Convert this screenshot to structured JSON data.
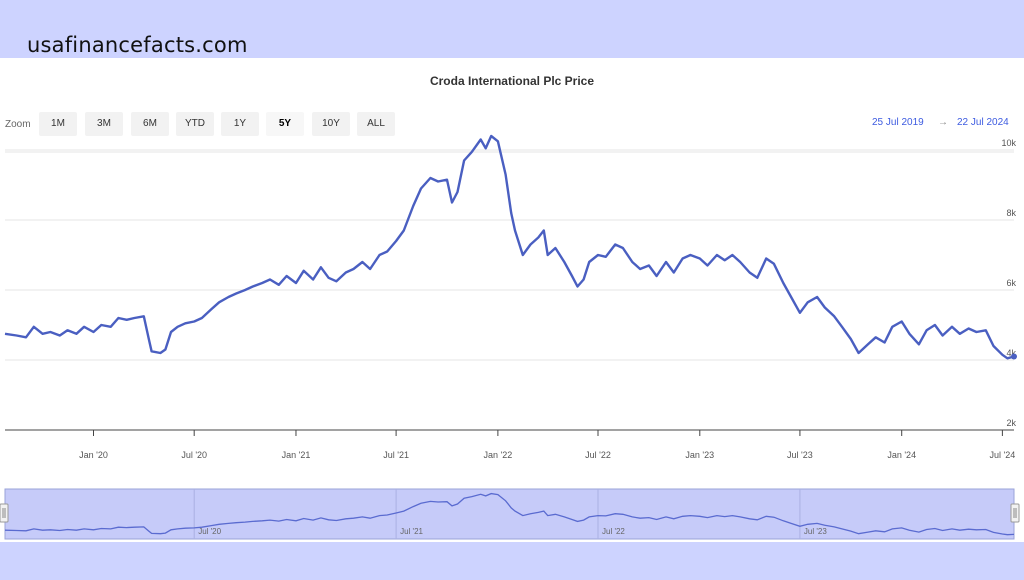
{
  "header": {
    "site": "usafinancefacts.com"
  },
  "colors": {
    "band": "#cdd3ff",
    "series": "#4a5fc1",
    "navigator_fill": "#c6cbf9",
    "date_link": "#3d5be0"
  },
  "zoom": {
    "label": "Zoom",
    "buttons": [
      "1M",
      "3M",
      "6M",
      "YTD",
      "1Y",
      "5Y",
      "10Y",
      "ALL"
    ],
    "selected": "5Y"
  },
  "range": {
    "from": "25 Jul 2019",
    "arrow": "→",
    "to": "22 Jul 2024"
  },
  "chart_data": {
    "type": "line",
    "title": "Croda International Plc Price",
    "xlabel": "",
    "ylabel": "",
    "grid": true,
    "xlim": [
      "2019-07-25",
      "2024-07-22"
    ],
    "ylim": [
      2000,
      11000
    ],
    "y_ticks": [
      2000,
      4000,
      6000,
      8000,
      10000
    ],
    "y_tick_labels": [
      "2k",
      "4k",
      "6k",
      "8k",
      "10k"
    ],
    "x_ticks": [
      "2020-01-01",
      "2020-07-01",
      "2021-01-01",
      "2021-07-01",
      "2022-01-01",
      "2022-07-01",
      "2023-01-01",
      "2023-07-01",
      "2024-01-01",
      "2024-07-01"
    ],
    "x_tick_labels": [
      "Jan '20",
      "Jul '20",
      "Jan '21",
      "Jul '21",
      "Jan '22",
      "Jul '22",
      "Jan '23",
      "Jul '23",
      "Jan '24",
      "Jul '24"
    ],
    "navigator_tick_labels": [
      "Jul '20",
      "Jul '21",
      "Jul '22",
      "Jul '23"
    ],
    "series": [
      {
        "points": [
          [
            "2019-07-25",
            4750
          ],
          [
            "2019-08-15",
            4700
          ],
          [
            "2019-09-01",
            4650
          ],
          [
            "2019-09-15",
            4950
          ],
          [
            "2019-10-01",
            4750
          ],
          [
            "2019-10-15",
            4800
          ],
          [
            "2019-11-01",
            4700
          ],
          [
            "2019-11-15",
            4850
          ],
          [
            "2019-12-01",
            4750
          ],
          [
            "2019-12-15",
            4950
          ],
          [
            "2020-01-01",
            4800
          ],
          [
            "2020-01-15",
            5000
          ],
          [
            "2020-02-01",
            4950
          ],
          [
            "2020-02-15",
            5200
          ],
          [
            "2020-03-01",
            5150
          ],
          [
            "2020-03-15",
            5200
          ],
          [
            "2020-04-01",
            5250
          ],
          [
            "2020-04-10",
            4600
          ],
          [
            "2020-04-15",
            4250
          ],
          [
            "2020-05-01",
            4200
          ],
          [
            "2020-05-10",
            4300
          ],
          [
            "2020-05-20",
            4800
          ],
          [
            "2020-06-01",
            4950
          ],
          [
            "2020-06-15",
            5050
          ],
          [
            "2020-07-01",
            5100
          ],
          [
            "2020-07-15",
            5200
          ],
          [
            "2020-08-01",
            5450
          ],
          [
            "2020-08-15",
            5650
          ],
          [
            "2020-09-01",
            5800
          ],
          [
            "2020-09-15",
            5900
          ],
          [
            "2020-10-01",
            6000
          ],
          [
            "2020-10-15",
            6100
          ],
          [
            "2020-11-01",
            6200
          ],
          [
            "2020-11-15",
            6300
          ],
          [
            "2020-12-01",
            6150
          ],
          [
            "2020-12-15",
            6400
          ],
          [
            "2021-01-01",
            6200
          ],
          [
            "2021-01-15",
            6550
          ],
          [
            "2021-02-01",
            6300
          ],
          [
            "2021-02-15",
            6650
          ],
          [
            "2021-03-01",
            6350
          ],
          [
            "2021-03-15",
            6250
          ],
          [
            "2021-04-01",
            6500
          ],
          [
            "2021-04-15",
            6600
          ],
          [
            "2021-05-01",
            6800
          ],
          [
            "2021-05-15",
            6600
          ],
          [
            "2021-06-01",
            7000
          ],
          [
            "2021-06-15",
            7100
          ],
          [
            "2021-07-01",
            7400
          ],
          [
            "2021-07-15",
            7700
          ],
          [
            "2021-08-01",
            8400
          ],
          [
            "2021-08-15",
            8900
          ],
          [
            "2021-09-01",
            9200
          ],
          [
            "2021-09-15",
            9100
          ],
          [
            "2021-10-01",
            9150
          ],
          [
            "2021-10-10",
            8500
          ],
          [
            "2021-10-20",
            8800
          ],
          [
            "2021-11-01",
            9700
          ],
          [
            "2021-11-15",
            9950
          ],
          [
            "2021-12-01",
            10300
          ],
          [
            "2021-12-10",
            10050
          ],
          [
            "2021-12-20",
            10400
          ],
          [
            "2022-01-01",
            10250
          ],
          [
            "2022-01-15",
            9300
          ],
          [
            "2022-01-25",
            8200
          ],
          [
            "2022-02-01",
            7700
          ],
          [
            "2022-02-15",
            7000
          ],
          [
            "2022-03-01",
            7300
          ],
          [
            "2022-03-15",
            7500
          ],
          [
            "2022-03-25",
            7700
          ],
          [
            "2022-04-01",
            7000
          ],
          [
            "2022-04-15",
            7200
          ],
          [
            "2022-05-01",
            6800
          ],
          [
            "2022-05-15",
            6400
          ],
          [
            "2022-05-25",
            6100
          ],
          [
            "2022-06-05",
            6300
          ],
          [
            "2022-06-15",
            6800
          ],
          [
            "2022-07-01",
            7000
          ],
          [
            "2022-07-15",
            6950
          ],
          [
            "2022-08-01",
            7300
          ],
          [
            "2022-08-15",
            7200
          ],
          [
            "2022-09-01",
            6800
          ],
          [
            "2022-09-15",
            6600
          ],
          [
            "2022-10-01",
            6700
          ],
          [
            "2022-10-15",
            6400
          ],
          [
            "2022-11-01",
            6800
          ],
          [
            "2022-11-15",
            6500
          ],
          [
            "2022-12-01",
            6900
          ],
          [
            "2022-12-15",
            7000
          ],
          [
            "2023-01-01",
            6900
          ],
          [
            "2023-01-15",
            6700
          ],
          [
            "2023-02-01",
            7000
          ],
          [
            "2023-02-15",
            6850
          ],
          [
            "2023-03-01",
            7000
          ],
          [
            "2023-03-15",
            6800
          ],
          [
            "2023-04-01",
            6500
          ],
          [
            "2023-04-15",
            6350
          ],
          [
            "2023-05-01",
            6900
          ],
          [
            "2023-05-15",
            6750
          ],
          [
            "2023-06-01",
            6200
          ],
          [
            "2023-06-15",
            5800
          ],
          [
            "2023-07-01",
            5350
          ],
          [
            "2023-07-15",
            5650
          ],
          [
            "2023-08-01",
            5800
          ],
          [
            "2023-08-15",
            5500
          ],
          [
            "2023-09-01",
            5250
          ],
          [
            "2023-09-15",
            4950
          ],
          [
            "2023-10-01",
            4600
          ],
          [
            "2023-10-15",
            4200
          ],
          [
            "2023-11-01",
            4450
          ],
          [
            "2023-11-15",
            4650
          ],
          [
            "2023-12-01",
            4500
          ],
          [
            "2023-12-15",
            4950
          ],
          [
            "2024-01-01",
            5100
          ],
          [
            "2024-01-15",
            4750
          ],
          [
            "2024-02-01",
            4450
          ],
          [
            "2024-02-15",
            4850
          ],
          [
            "2024-03-01",
            5000
          ],
          [
            "2024-03-15",
            4700
          ],
          [
            "2024-04-01",
            4950
          ],
          [
            "2024-04-15",
            4750
          ],
          [
            "2024-05-01",
            4900
          ],
          [
            "2024-05-15",
            4800
          ],
          [
            "2024-06-01",
            4850
          ],
          [
            "2024-06-15",
            4400
          ],
          [
            "2024-07-01",
            4150
          ],
          [
            "2024-07-10",
            4050
          ],
          [
            "2024-07-22",
            4100
          ]
        ]
      }
    ]
  }
}
